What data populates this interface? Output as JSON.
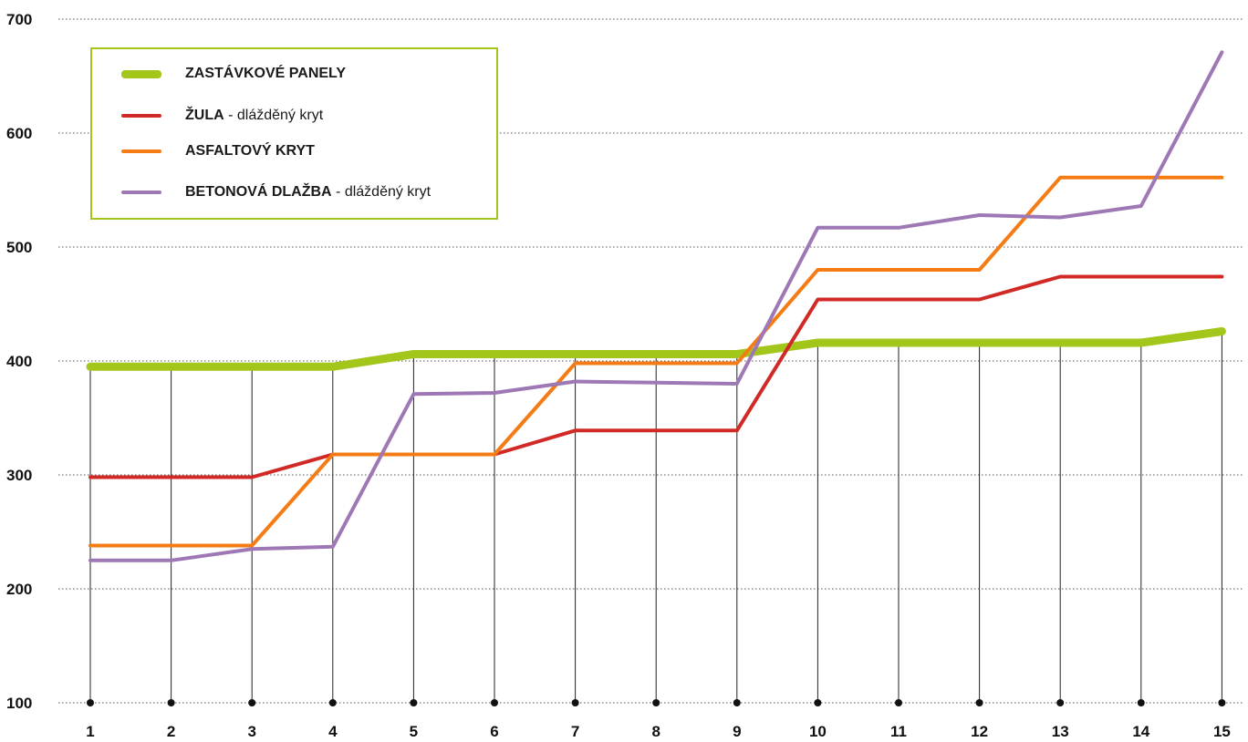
{
  "chart_data": {
    "type": "line",
    "title": "",
    "xlabel": "",
    "ylabel": "",
    "categories": [
      "1",
      "2",
      "3",
      "4",
      "5",
      "6",
      "7",
      "8",
      "9",
      "10",
      "11",
      "12",
      "13",
      "14",
      "15"
    ],
    "y_ticks": [
      "100",
      "200",
      "300",
      "400",
      "500",
      "600",
      "700"
    ],
    "ylim": [
      100,
      700
    ],
    "grid": "horizontal dotted",
    "legend_position": "top-left",
    "series": [
      {
        "name": "ZASTÁVKOVÉ PANELY",
        "name_suffix": "",
        "color": "#a3c61a",
        "values": [
          395,
          395,
          395,
          395,
          406,
          406,
          406,
          406,
          406,
          416,
          416,
          416,
          416,
          416,
          426
        ]
      },
      {
        "name": "ŽULA",
        "name_suffix": " - dlážděný kryt",
        "color": "#d12a26",
        "values": [
          298,
          298,
          298,
          318,
          318,
          318,
          339,
          339,
          339,
          454,
          454,
          454,
          474,
          474,
          474
        ]
      },
      {
        "name": "ASFALTOVÝ KRYT",
        "name_suffix": "",
        "color": "#f57c14",
        "values": [
          238,
          238,
          238,
          318,
          318,
          318,
          398,
          398,
          398,
          480,
          480,
          480,
          561,
          561,
          561
        ]
      },
      {
        "name": "BETONOVÁ DLAŽBA",
        "name_suffix": " - dlážděný kryt",
        "color": "#9e78b5",
        "values": [
          225,
          225,
          235,
          237,
          371,
          372,
          382,
          381,
          380,
          517,
          517,
          528,
          526,
          536,
          671
        ]
      }
    ]
  }
}
